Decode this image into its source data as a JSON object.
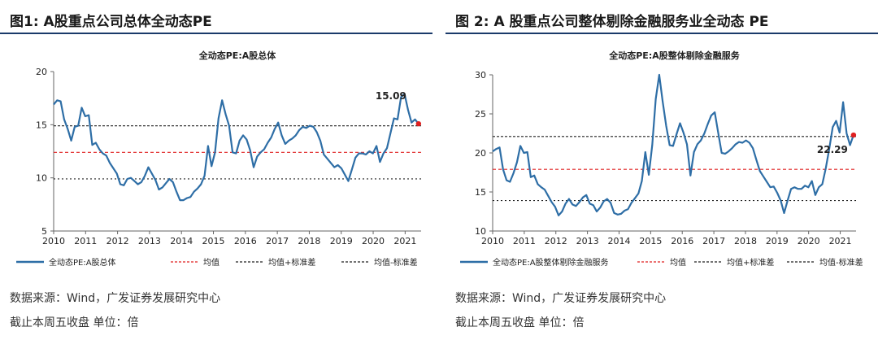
{
  "panels": [
    {
      "figure_title": "图1:  A股重点公司总体全动态PE",
      "source_line": "数据来源：Wind，广发证券发展研究中心",
      "note_line": "截止本周五收盘  单位：倍"
    },
    {
      "figure_title": "图 2:  A 股重点公司整体剔除金融服务业全动态 PE",
      "source_line": "数据来源：Wind，广发证券发展研究中心",
      "note_line": "截止本周五收盘  单位：倍"
    }
  ],
  "chart_data": [
    {
      "type": "line",
      "title": "全动态PE:A股总体",
      "xlabel": "",
      "ylabel": "",
      "x_start": 2010.0,
      "x_end": 2021.5,
      "x_ticks": [
        "2010",
        "2011",
        "2012",
        "2013",
        "2014",
        "2015",
        "2016",
        "2017",
        "2018",
        "2019",
        "2020",
        "2021"
      ],
      "ylim": [
        5,
        20
      ],
      "y_ticks": [
        5,
        10,
        15,
        20
      ],
      "legend_placement": "bottom",
      "series": [
        {
          "name": "全动态PE:A股总体",
          "color": "#2e6ea6",
          "style": "solid",
          "values": [
            16.9,
            17.3,
            17.2,
            15.5,
            14.6,
            13.5,
            14.8,
            14.9,
            16.6,
            15.8,
            15.9,
            13.1,
            13.3,
            12.7,
            12.3,
            12.1,
            11.4,
            10.9,
            10.4,
            9.4,
            9.3,
            9.9,
            10.0,
            9.7,
            9.4,
            9.6,
            10.2,
            11.0,
            10.4,
            9.8,
            8.9,
            9.1,
            9.5,
            9.9,
            9.6,
            8.7,
            7.9,
            7.9,
            8.1,
            8.2,
            8.7,
            9.0,
            9.4,
            10.2,
            13.0,
            11.1,
            12.4,
            15.6,
            17.3,
            16.0,
            14.9,
            12.4,
            12.3,
            13.5,
            14.0,
            13.6,
            12.6,
            11.0,
            12.0,
            12.4,
            12.7,
            13.3,
            13.8,
            14.6,
            15.2,
            14.0,
            13.2,
            13.5,
            13.7,
            14.0,
            14.5,
            14.8,
            14.7,
            14.9,
            14.8,
            14.3,
            13.5,
            12.2,
            11.8,
            11.4,
            11.0,
            11.2,
            10.9,
            10.3,
            9.7,
            10.8,
            11.9,
            12.3,
            12.3,
            12.2,
            12.5,
            12.3,
            13.0,
            11.5,
            12.3,
            12.8,
            14.2,
            15.6,
            15.5,
            17.6,
            17.9,
            16.4,
            15.2,
            15.5,
            15.09
          ]
        },
        {
          "name": "均值",
          "color": "#e02020",
          "style": "dash",
          "values": [
            12.4
          ]
        },
        {
          "name": "均值+标准差",
          "color": "#222222",
          "style": "dash",
          "values": [
            14.9
          ]
        },
        {
          "name": "均值-标准差",
          "color": "#222222",
          "style": "dash",
          "values": [
            9.9
          ]
        }
      ],
      "last_value_label": "15.09",
      "marker_color": "#e02020"
    },
    {
      "type": "line",
      "title": "全动态PE:A股整体剔除金融服务",
      "xlabel": "",
      "ylabel": "",
      "x_start": 2010.0,
      "x_end": 2021.5,
      "x_ticks": [
        "2010",
        "2011",
        "2012",
        "2013",
        "2014",
        "2015",
        "2016",
        "2017",
        "2018",
        "2019",
        "2020",
        "2021"
      ],
      "ylim": [
        10,
        30
      ],
      "y_ticks": [
        10,
        15,
        20,
        25,
        30
      ],
      "legend_placement": "bottom",
      "series": [
        {
          "name": "全动态PE:A股整体剔除金融服务",
          "color": "#2e6ea6",
          "style": "solid",
          "values": [
            20.2,
            20.5,
            20.7,
            17.9,
            16.5,
            16.3,
            17.4,
            18.8,
            20.9,
            20.0,
            20.1,
            16.9,
            17.1,
            16.0,
            15.6,
            15.3,
            14.5,
            13.7,
            13.1,
            12.0,
            12.5,
            13.5,
            14.1,
            13.4,
            13.2,
            13.7,
            14.3,
            14.6,
            13.5,
            13.3,
            12.5,
            13.0,
            13.8,
            14.1,
            13.6,
            12.3,
            12.1,
            12.2,
            12.6,
            12.8,
            13.6,
            14.2,
            14.8,
            16.4,
            20.1,
            17.2,
            21.0,
            26.9,
            30.0,
            26.6,
            23.5,
            21.0,
            20.9,
            22.4,
            23.8,
            22.6,
            21.1,
            17.1,
            20.1,
            21.1,
            21.6,
            22.5,
            23.7,
            24.8,
            25.2,
            22.6,
            20.0,
            19.9,
            20.2,
            20.6,
            21.1,
            21.4,
            21.3,
            21.6,
            21.3,
            20.6,
            19.1,
            17.7,
            17.0,
            16.3,
            15.6,
            15.7,
            14.9,
            13.9,
            12.3,
            13.9,
            15.4,
            15.6,
            15.4,
            15.4,
            15.8,
            15.6,
            16.4,
            14.6,
            15.6,
            16.0,
            18.0,
            20.5,
            23.3,
            24.1,
            22.6,
            26.5,
            22.5,
            21.0,
            22.29
          ]
        },
        {
          "name": "均值",
          "color": "#e02020",
          "style": "dash",
          "values": [
            17.9
          ]
        },
        {
          "name": "均值+标准差",
          "color": "#222222",
          "style": "dash",
          "values": [
            22.1
          ]
        },
        {
          "name": "均值-标准差",
          "color": "#222222",
          "style": "dash",
          "values": [
            13.9
          ]
        }
      ],
      "last_value_label": "22.29",
      "marker_color": "#e02020"
    }
  ]
}
